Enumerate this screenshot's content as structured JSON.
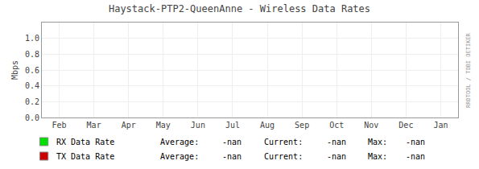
{
  "chart_data": {
    "type": "line",
    "title": "Haystack-PTP2-QueenAnne - Wireless Data Rates",
    "y_label": "Mbps",
    "categories": [
      "Feb",
      "Mar",
      "Apr",
      "May",
      "Jun",
      "Jul",
      "Aug",
      "Sep",
      "Oct",
      "Nov",
      "Dec",
      "Jan"
    ],
    "series": [
      {
        "name": "RX Data Rate",
        "color": "#00e000",
        "values": [
          null,
          null,
          null,
          null,
          null,
          null,
          null,
          null,
          null,
          null,
          null,
          null
        ],
        "stats": [
          {
            "label": "Average:",
            "value": "-nan"
          },
          {
            "label": "Current:",
            "value": "-nan"
          },
          {
            "label": "Max:",
            "value": "-nan"
          }
        ]
      },
      {
        "name": "TX Data Rate",
        "color": "#cc0000",
        "values": [
          null,
          null,
          null,
          null,
          null,
          null,
          null,
          null,
          null,
          null,
          null,
          null
        ],
        "stats": [
          {
            "label": "Average:",
            "value": "-nan"
          },
          {
            "label": "Current:",
            "value": "-nan"
          },
          {
            "label": "Max:",
            "value": "-nan"
          }
        ]
      }
    ],
    "ylim": [
      0.0,
      1.2
    ],
    "yticks": [
      {
        "value": 0.0,
        "label": "0.0"
      },
      {
        "value": 0.2,
        "label": "0.2"
      },
      {
        "value": 0.4,
        "label": "0.4"
      },
      {
        "value": 0.6,
        "label": "0.6"
      },
      {
        "value": 0.8,
        "label": "0.8"
      },
      {
        "value": 1.0,
        "label": "1.0"
      }
    ],
    "grid": true,
    "annotations": [
      "RRDTOOL / TOBI OETIKER"
    ]
  }
}
